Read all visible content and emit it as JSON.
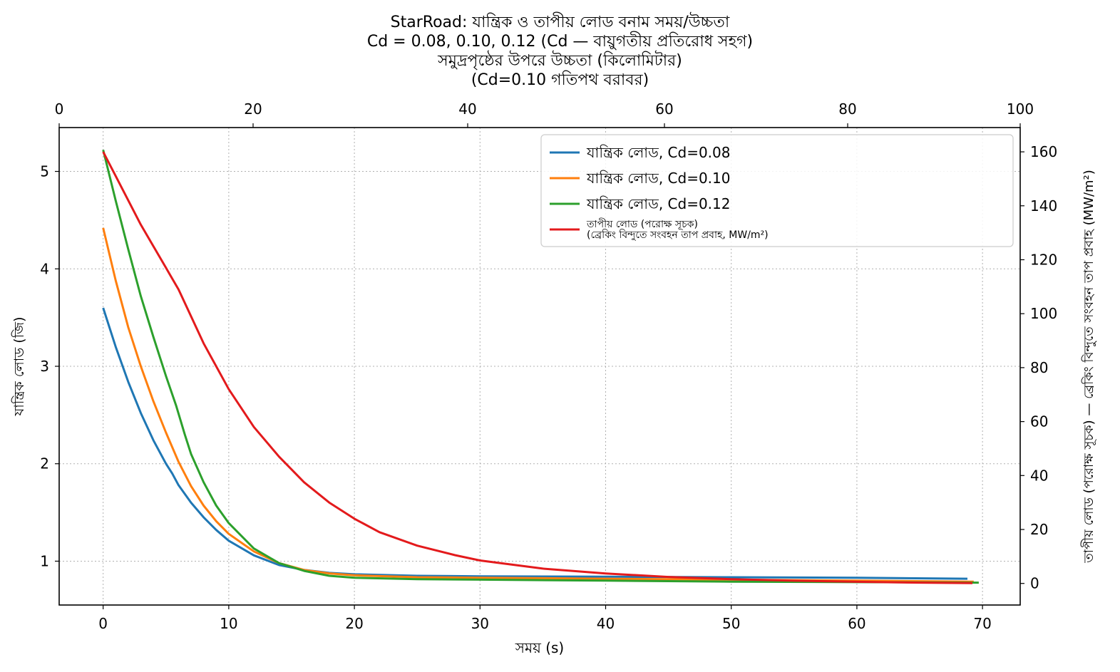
{
  "chart_data": {
    "type": "line",
    "title_lines": [
      "StarRoad: যান্ত্রিক ও তাপীয় লোড বনাম সময়/উচ্চতা",
      "Cd = 0.08, 0.10, 0.12 (Cd — বায়ুগতীয় প্রতিরোধ সহগ)"
    ],
    "top_axis_label_lines": [
      "সমুদ্রপৃষ্ঠের উপরে উচ্চতা (কিলোমিটার)",
      "(Cd=0.10 গতিপথ বরাবর)"
    ],
    "xlabel": "সময় (s)",
    "ylabel": "যান্ত্রিক লোড (জি)",
    "y2label": "তাপীয় লোড (পরোক্ষ সূচক) — ব্রেকিং বিন্দুতে সংবহন তাপ প্রবাহ (MW/m²)",
    "xlim": [
      -3.5,
      73
    ],
    "ylim": [
      0.55,
      5.45
    ],
    "y2lim": [
      -8,
      169
    ],
    "top_xlim": [
      0,
      100
    ],
    "x_ticks": [
      "0",
      "10",
      "20",
      "30",
      "40",
      "50",
      "60",
      "70"
    ],
    "y_ticks": [
      "1",
      "2",
      "3",
      "4",
      "5"
    ],
    "y2_ticks": [
      "0",
      "20",
      "40",
      "60",
      "80",
      "100",
      "120",
      "140",
      "160"
    ],
    "top_ticks": [
      "0",
      "20",
      "40",
      "60",
      "80",
      "100"
    ],
    "grid": true,
    "legend_position": "top-right",
    "series": [
      {
        "name": "যান্ত্রিক লোড, Cd=0.08",
        "color": "#1f77b4",
        "axis": "left",
        "x": [
          0,
          1,
          2,
          3,
          4,
          5,
          5.5,
          6,
          7,
          8,
          9,
          10,
          12,
          14,
          16,
          18,
          20,
          25,
          30,
          40,
          50,
          60,
          68.8
        ],
        "y": [
          3.6,
          3.2,
          2.84,
          2.52,
          2.24,
          2.0,
          1.9,
          1.78,
          1.6,
          1.45,
          1.32,
          1.21,
          1.06,
          0.96,
          0.91,
          0.88,
          0.865,
          0.85,
          0.845,
          0.84,
          0.835,
          0.83,
          0.82
        ]
      },
      {
        "name": "যান্ত্রিক লোড, Cd=0.10",
        "color": "#ff7f0e",
        "axis": "left",
        "x": [
          0,
          1,
          2,
          3,
          4,
          5,
          6,
          7,
          8,
          9,
          10,
          12,
          14,
          16,
          18,
          20,
          25,
          30,
          40,
          50,
          60,
          69.3
        ],
        "y": [
          4.42,
          3.88,
          3.4,
          3.0,
          2.64,
          2.32,
          2.02,
          1.77,
          1.57,
          1.41,
          1.28,
          1.1,
          0.98,
          0.91,
          0.875,
          0.855,
          0.835,
          0.83,
          0.82,
          0.81,
          0.8,
          0.79
        ]
      },
      {
        "name": "যান্ত্রিক লোড, Cd=0.12",
        "color": "#2ca02c",
        "axis": "left",
        "x": [
          0,
          1,
          2,
          3,
          4,
          5,
          5.8,
          6.5,
          7,
          8,
          9,
          10,
          12,
          14,
          16,
          18,
          20,
          25,
          30,
          40,
          50,
          60,
          69.7
        ],
        "y": [
          5.22,
          4.7,
          4.2,
          3.72,
          3.3,
          2.9,
          2.6,
          2.3,
          2.1,
          1.81,
          1.57,
          1.39,
          1.13,
          0.98,
          0.9,
          0.85,
          0.83,
          0.815,
          0.81,
          0.8,
          0.79,
          0.785,
          0.78
        ]
      },
      {
        "name": "তাপীয় লোড (পরোক্ষ সূচক)\n(ব্রেকিং বিন্দুতে সংবহন তাপ প্রবাহ, MW/m²)",
        "color": "#e31a1c",
        "axis": "right",
        "x": [
          0,
          1,
          2,
          3,
          4,
          5,
          5.5,
          6,
          8,
          10,
          12,
          14,
          16,
          18,
          20,
          22,
          25,
          28,
          30,
          35,
          40,
          45,
          50,
          55,
          60,
          65,
          69.2
        ],
        "y": [
          160,
          151,
          142,
          133,
          125,
          117,
          113,
          109,
          89,
          72,
          58,
          47,
          37.5,
          30,
          24,
          19,
          14,
          10.5,
          8.5,
          5.5,
          3.7,
          2.4,
          1.6,
          1.0,
          0.6,
          0.3,
          0.1
        ]
      }
    ]
  }
}
